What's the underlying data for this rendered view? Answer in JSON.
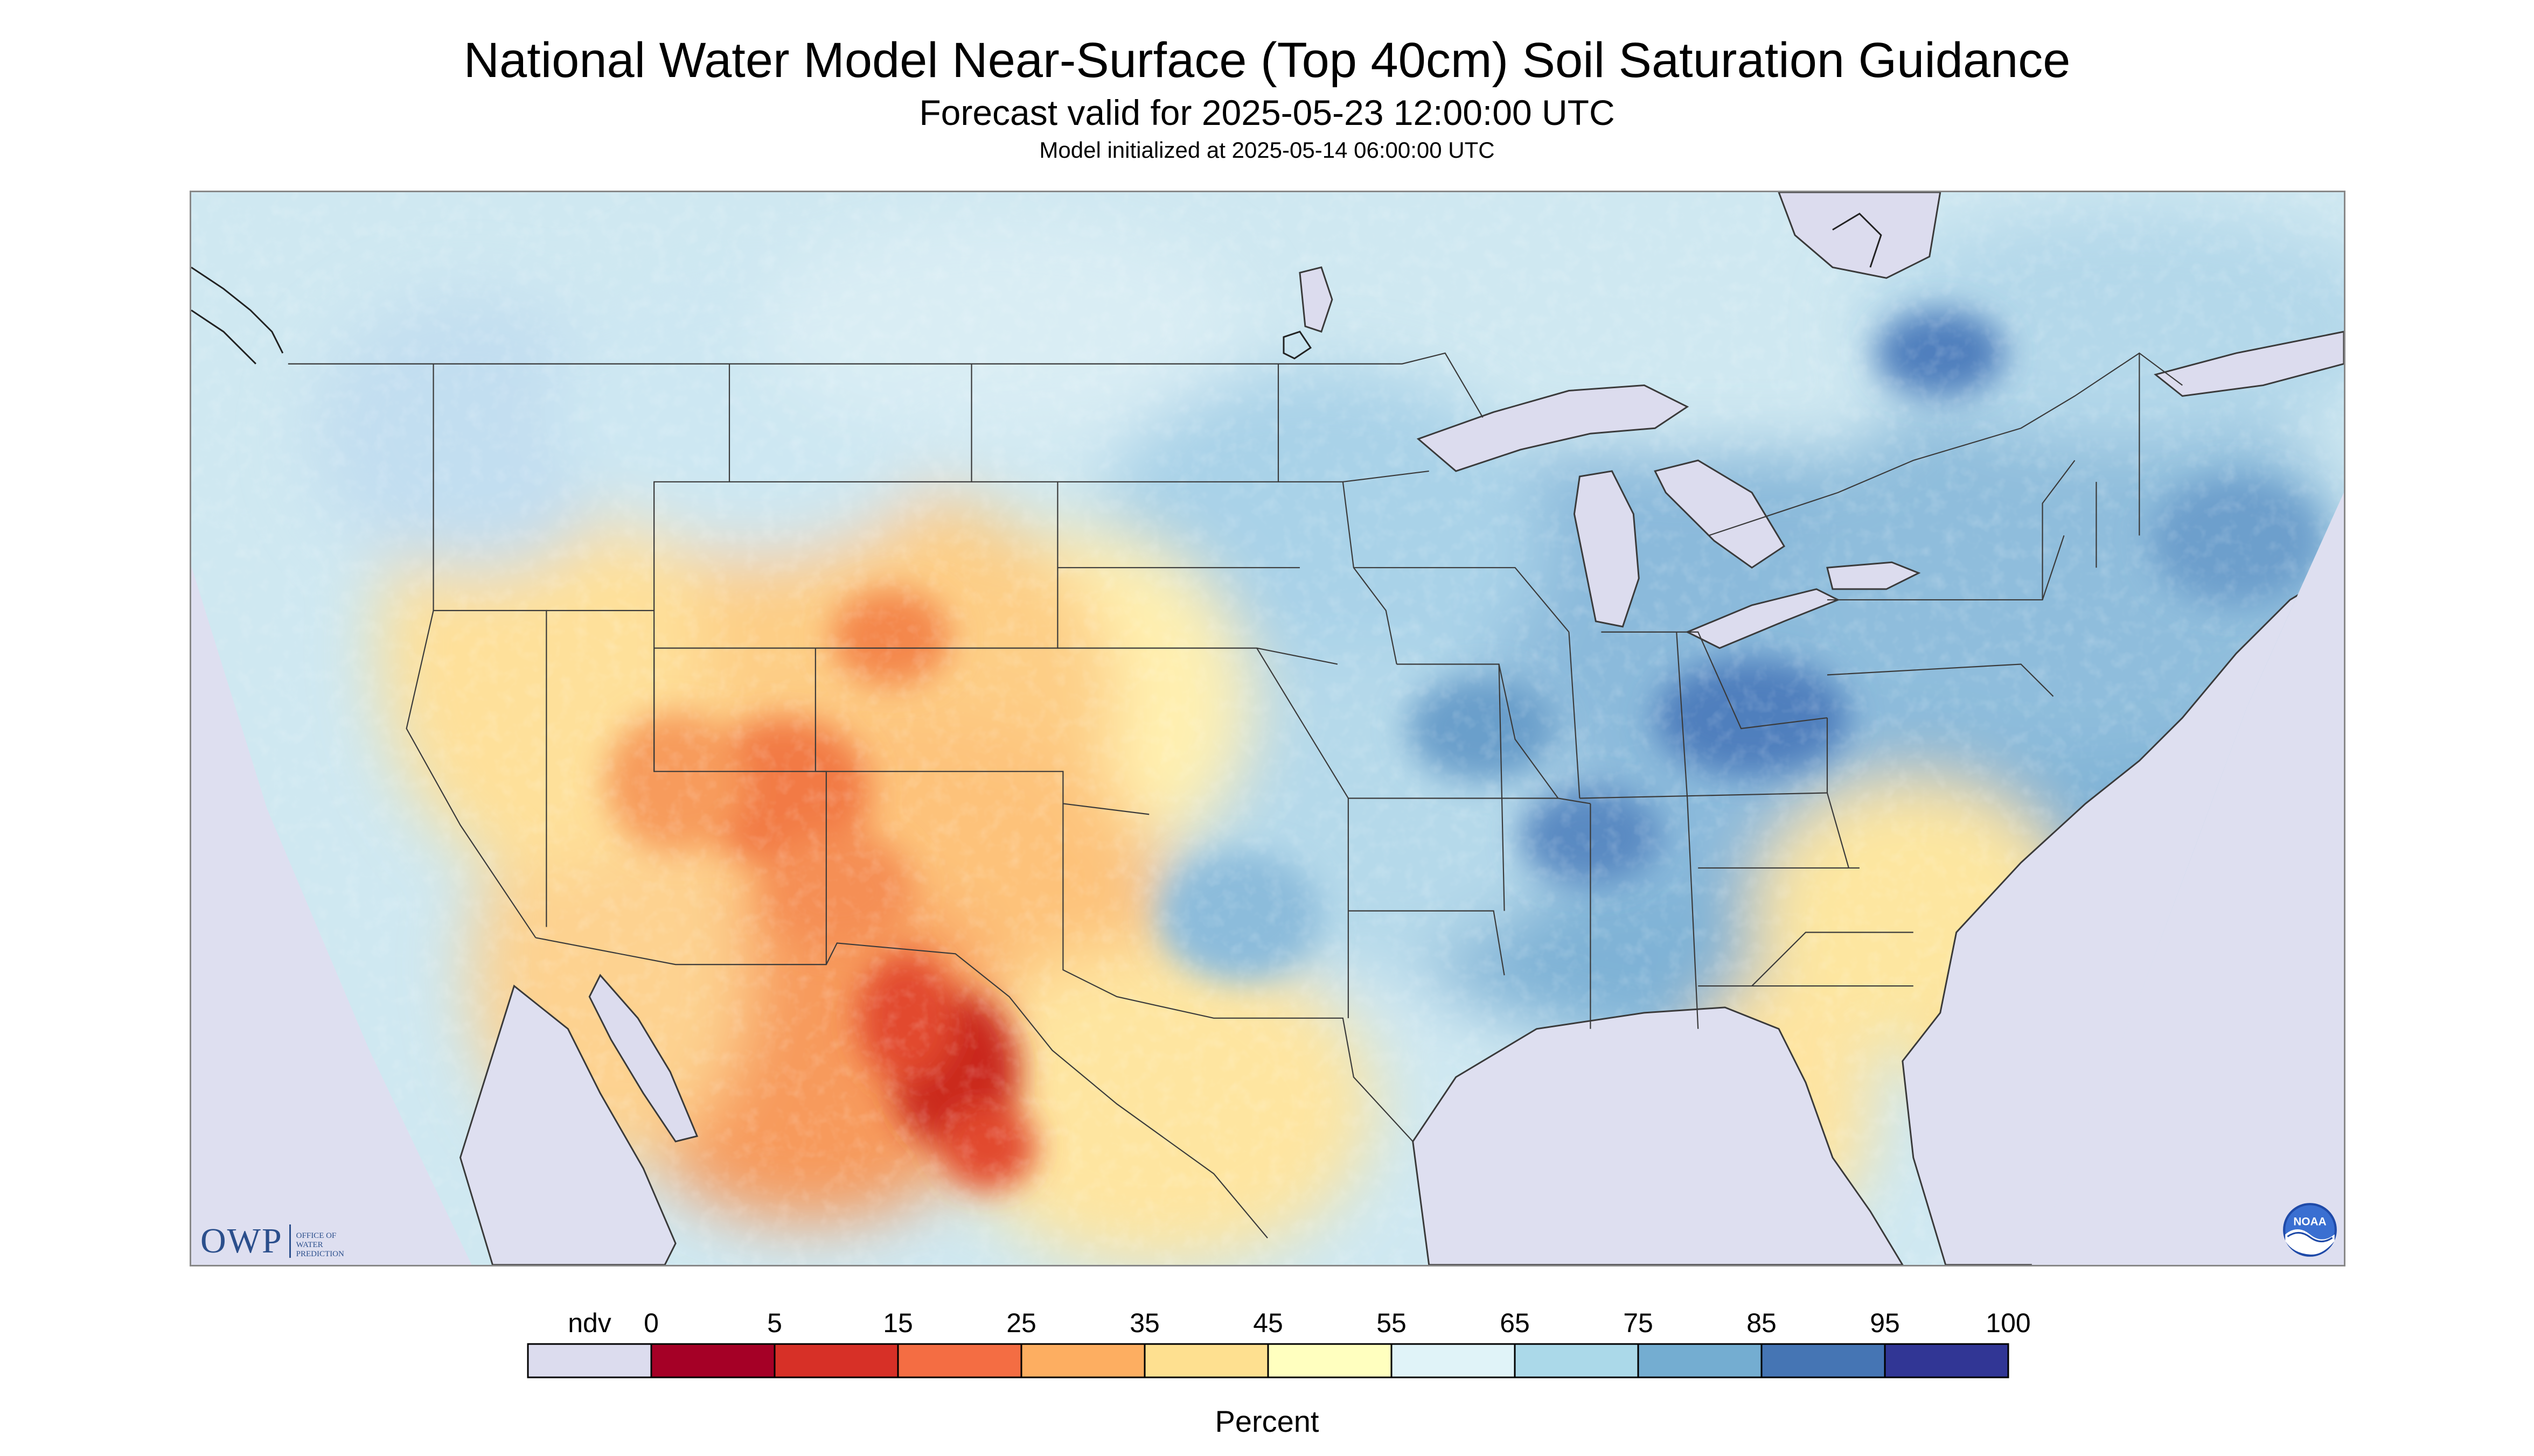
{
  "header": {
    "title": "National Water Model Near-Surface (Top 40cm) Soil Saturation Guidance",
    "subtitle": "Forecast valid for 2025-05-23 12:00:00 UTC",
    "init": "Model initialized at 2025-05-14 06:00:00 UTC"
  },
  "map": {
    "projection": "Lambert Conformal",
    "region": "Contiguous United States with parts of Canada and Mexico",
    "no_data_color": "#dedff0",
    "water_color": "#dcdcee",
    "regions_summary": [
      {
        "area": "Southwest / Mexico",
        "level": "5-25"
      },
      {
        "area": "Great Basin / Rockies",
        "level": "25-45"
      },
      {
        "area": "Great Plains",
        "level": "45-65"
      },
      {
        "area": "Midwest / Ohio Valley",
        "level": "75-95"
      },
      {
        "area": "Southeast coast / Florida",
        "level": "35-55"
      },
      {
        "area": "Northeast",
        "level": "65-85"
      }
    ]
  },
  "logos": {
    "owp_letters": "OWP",
    "owp_line1": "OFFICE OF",
    "owp_line2": "WATER",
    "owp_line3": "PREDICTION",
    "noaa_text": "NOAA"
  },
  "chart_data": {
    "type": "heatmap",
    "legend": {
      "unit": "Percent",
      "ndv_label": "ndv",
      "ticks": [
        "0",
        "5",
        "15",
        "25",
        "35",
        "45",
        "55",
        "65",
        "75",
        "85",
        "95",
        "100"
      ],
      "colors": [
        "#dcdcee",
        "#a50026",
        "#d73027",
        "#f46d43",
        "#fdae61",
        "#fee090",
        "#ffffbf",
        "#e0f3f8",
        "#abd9e9",
        "#74add1",
        "#4575b4",
        "#313695"
      ]
    }
  }
}
